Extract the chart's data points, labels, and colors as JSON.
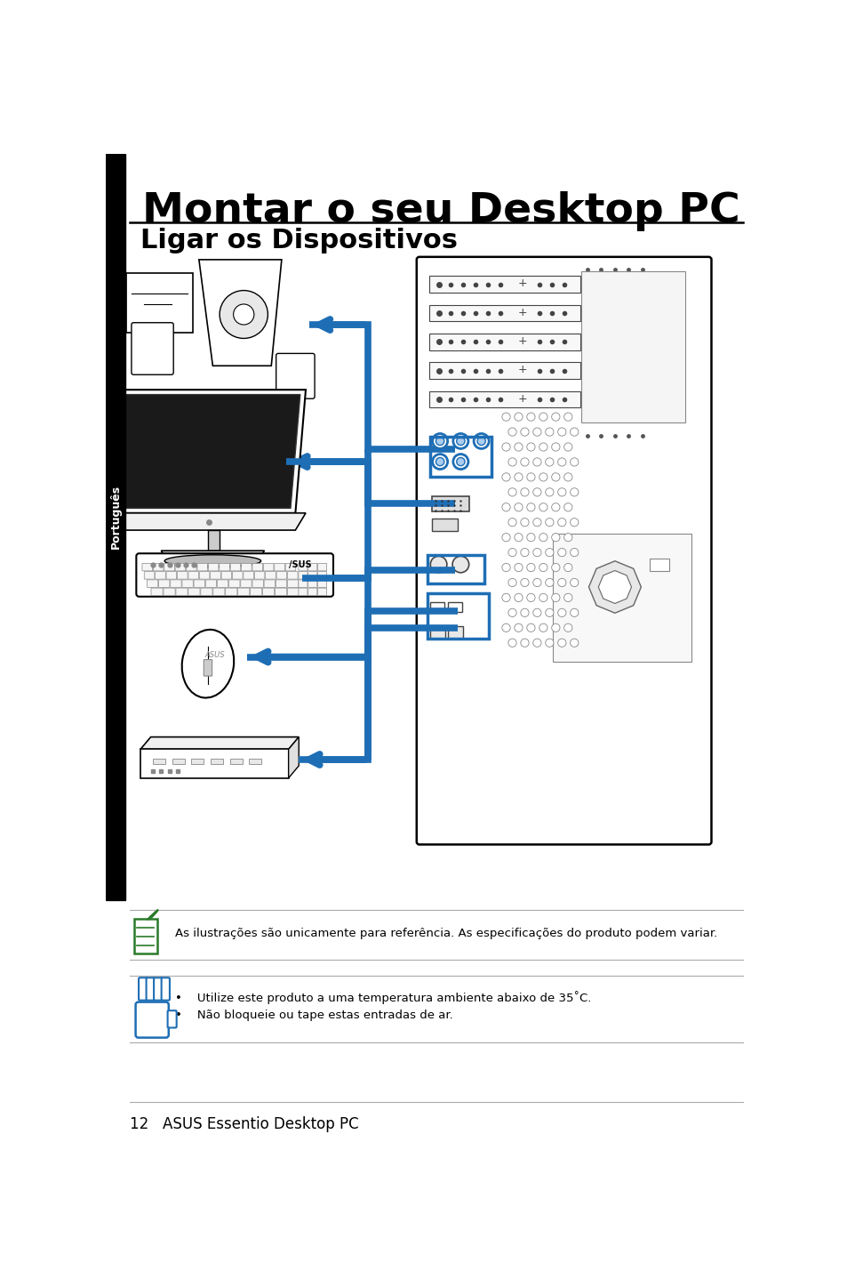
{
  "title": "Montar o seu Desktop PC",
  "subtitle": "Ligar os Dispositivos",
  "sidebar_text": "Português",
  "note1_text": "As ilustrações são unicamente para referência. As especificações do produto podem variar.",
  "note2_text1": "Utilize este produto a uma temperatura ambiente abaixo de 35˚C.",
  "note2_text2": "Não bloqueie ou tape estas entradas de ar.",
  "footer_text": "12   ASUS Essentio Desktop PC",
  "bg_color": "#ffffff",
  "title_color": "#000000",
  "subtitle_color": "#000000",
  "arrow_color": "#1e6eb5",
  "line_color": "#aaaaaa",
  "note_icon1_color": "#2a7a2a",
  "note_icon2_color": "#1e6eb5",
  "sidebar_bg": "#000000",
  "sidebar_text_color": "#ffffff"
}
